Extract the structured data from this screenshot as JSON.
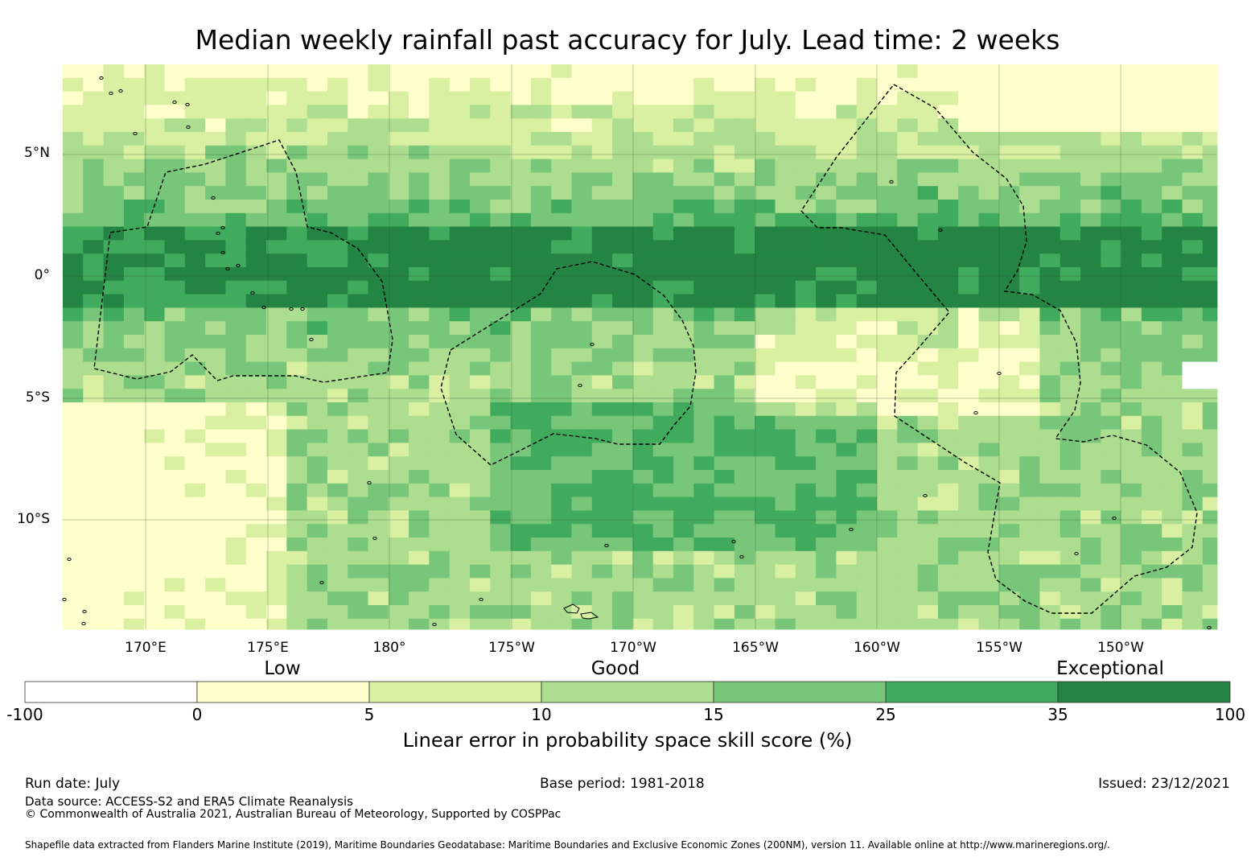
{
  "title": "Median weekly rainfall past accuracy for July. Lead time: 2 weeks",
  "map": {
    "lat_labels": [
      "5°N",
      "0°",
      "5°S",
      "10°S"
    ],
    "lon_labels": [
      "170°E",
      "175°E",
      "180°",
      "175°W",
      "170°W",
      "165°W",
      "160°W",
      "155°W",
      "150°W"
    ],
    "region_lon_range_deg_east": [
      166.6,
      213.9
    ],
    "region_lat_range_deg": [
      -14.6,
      8.6
    ],
    "grid_lines": true,
    "eez_boundaries": "dashed"
  },
  "colorbar": {
    "categories": [
      "Low",
      "Good",
      "Exceptional"
    ],
    "ticks": [
      "-100",
      "0",
      "5",
      "10",
      "15",
      "25",
      "35",
      "100"
    ],
    "colors": [
      "#ffffff",
      "#ffffcc",
      "#d9f0a3",
      "#addd8e",
      "#78c679",
      "#41ab5d",
      "#238443"
    ],
    "label": "Linear error in probability space skill score (%)"
  },
  "footer": {
    "run_date": "Run date: July",
    "base_period": "Base period: 1981-2018",
    "issued": "Issued: 23/12/2021",
    "data_source": "Data source: ACCESS-S2 and ERA5 Climate Reanalysis",
    "copyright": "© Commonwealth of Australia 2021, Australian Bureau of Meteorology, Supported by COSPPac",
    "shapefile": "Shapefile data extracted from Flanders Marine Institute (2019), Maritime Boundaries Geodatabase: Maritime Boundaries and Exclusive Economic Zones (200NM), version 11. Available online at http://www.marineregions.org/."
  }
}
